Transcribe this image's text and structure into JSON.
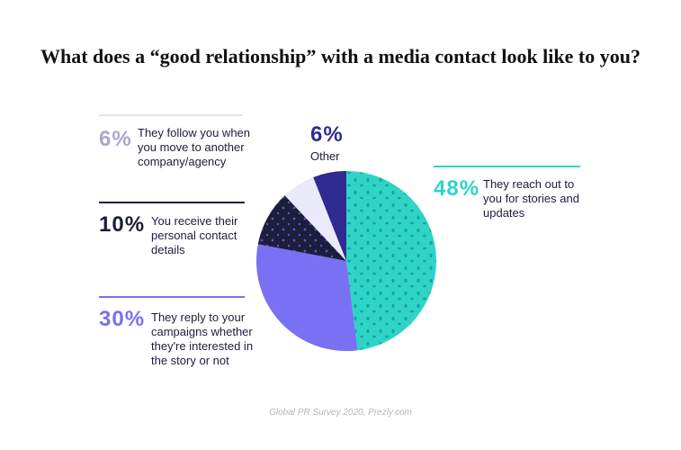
{
  "chart_data": {
    "type": "pie",
    "title": "What does a “good relationship” with a media contact look like to you?",
    "categories": [
      "They reach out to you for stories and updates",
      "They reply to your campaigns whether they're interested in the story or not",
      "You receive their personal contact details",
      "They follow you when you move to another company/agency",
      "Other"
    ],
    "values": [
      48,
      30,
      10,
      6,
      6
    ],
    "value_labels": [
      "48%",
      "30%",
      "10%",
      "6%",
      "6%"
    ],
    "colors": [
      "#2fd4c7",
      "#7a70f3",
      "#1c1e3c",
      "#ebeafb",
      "#2f2b92"
    ],
    "source": "Global PR Survey 2020, Prezly.com"
  }
}
